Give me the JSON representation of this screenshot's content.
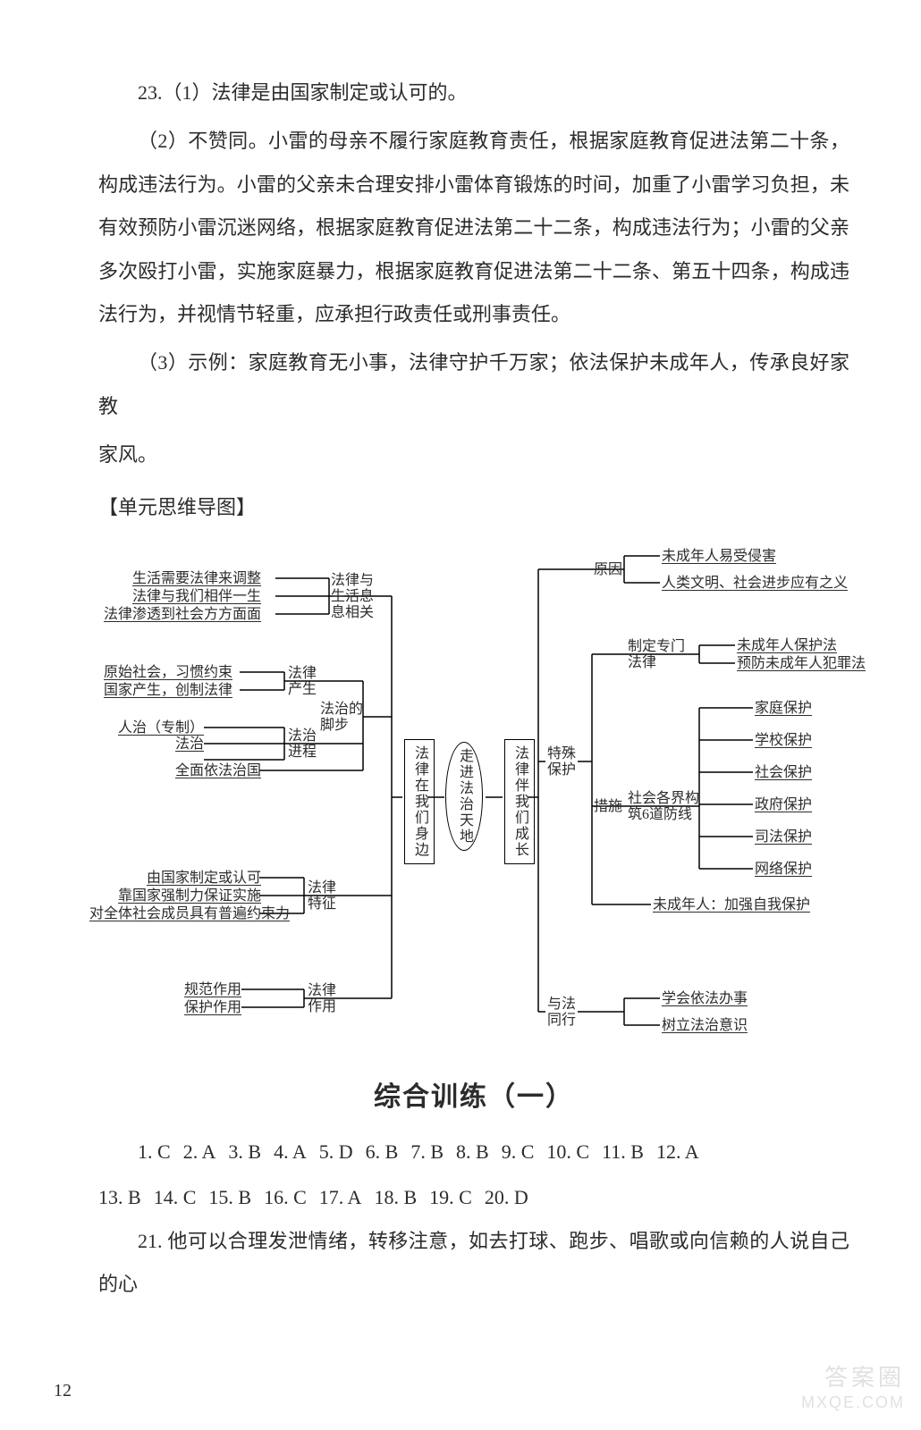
{
  "body": {
    "q23_intro": "23.（1）法律是由国家制定或认可的。",
    "q23_p2": "（2）不赞同。小雷的母亲不履行家庭教育责任，根据家庭教育促进法第二十条，构成违法行为。小雷的父亲未合理安排小雷体育锻炼的时间，加重了小雷学习负担，未有效预防小雷沉迷网络，根据家庭教育促进法第二十二条，构成违法行为；小雷的父亲多次殴打小雷，实施家庭暴力，根据家庭教育促进法第二十二条、第五十四条，构成违法行为，并视情节轻重，应承担行政责任或刑事责任。",
    "q23_p3a": "（3）示例：家庭教育无小事，法律守护千万家；依法保护未成年人，传承良好家教",
    "q23_p3b": "家风。",
    "section_label": "【单元思维导图】",
    "training_heading": "综合训练（一）",
    "q21": "21. 他可以合理发泄情绪，转移注意，如去打球、跑步、唱歌或向信赖的人说自己的心"
  },
  "mindmap": {
    "center": "走进法治天地",
    "left_main": "法律在我们身边",
    "right_main": "法律伴我们成长",
    "left": {
      "g1_label1": "法律与",
      "g1_label2": "生活息",
      "g1_label3": "息相关",
      "g1_items": [
        "生活需要法律来调整",
        "法律与我们相伴一生",
        "法律渗透到社会方方面面"
      ],
      "g2_label1": "法治的",
      "g2_label2": "脚步",
      "g2a_label1": "法律",
      "g2a_label2": "产生",
      "g2a_items": [
        "原始社会，习惯约束",
        "国家产生，创制法律"
      ],
      "g2b_label1": "法治",
      "g2b_label2": "进程",
      "g2b_items": [
        "人治（专制）",
        "法治",
        "全面依法治国"
      ],
      "g3_label1": "法律",
      "g3_label2": "特征",
      "g3_items": [
        "由国家制定或认可",
        "靠国家强制力保证实施",
        "对全体社会成员具有普遍约束力"
      ],
      "g4_label1": "法律",
      "g4_label2": "作用",
      "g4_items": [
        "规范作用",
        "保护作用"
      ]
    },
    "right": {
      "r1_label1": "原因",
      "r1_items": [
        "未成年人易受侵害",
        "人类文明、社会进步应有之义"
      ],
      "r2_label1": "特殊",
      "r2_label2": "保护",
      "r2a_label1": "制定专门",
      "r2a_label2": "法律",
      "r2a_items": [
        "未成年人保护法",
        "预防未成年人犯罪法"
      ],
      "r2b_label1": "社会各界构",
      "r2b_label2": "筑6道防线",
      "r2b_items": [
        "家庭保护",
        "学校保护",
        "社会保护",
        "政府保护",
        "司法保护",
        "网络保护"
      ],
      "r2_extra": "未成年人：加强自我保护",
      "r2_measure": "措施",
      "r3_label1": "与法",
      "r3_label2": "同行",
      "r3_items": [
        "学会依法办事",
        "树立法治意识"
      ]
    },
    "style": {
      "node_font_size": 16,
      "stroke": "#000000",
      "stroke_width": 1.5,
      "background": "#ffffff"
    }
  },
  "answers": {
    "row1": [
      {
        "n": "1.",
        "a": "C"
      },
      {
        "n": "2.",
        "a": "A"
      },
      {
        "n": "3.",
        "a": "B"
      },
      {
        "n": "4.",
        "a": "A"
      },
      {
        "n": "5.",
        "a": "D"
      },
      {
        "n": "6.",
        "a": "B"
      },
      {
        "n": "7.",
        "a": "B"
      },
      {
        "n": "8.",
        "a": "B"
      },
      {
        "n": "9.",
        "a": "C"
      },
      {
        "n": "10.",
        "a": "C"
      },
      {
        "n": "11.",
        "a": "B"
      },
      {
        "n": "12.",
        "a": "A"
      }
    ],
    "row2": [
      {
        "n": "13.",
        "a": "B"
      },
      {
        "n": "14.",
        "a": "C"
      },
      {
        "n": "15.",
        "a": "B"
      },
      {
        "n": "16.",
        "a": "C"
      },
      {
        "n": "17.",
        "a": "A"
      },
      {
        "n": "18.",
        "a": "B"
      },
      {
        "n": "19.",
        "a": "C"
      },
      {
        "n": "20.",
        "a": "D"
      }
    ]
  },
  "page_number": "12",
  "watermark": {
    "top": "答案圈",
    "bottom": "MXQE.COM"
  }
}
